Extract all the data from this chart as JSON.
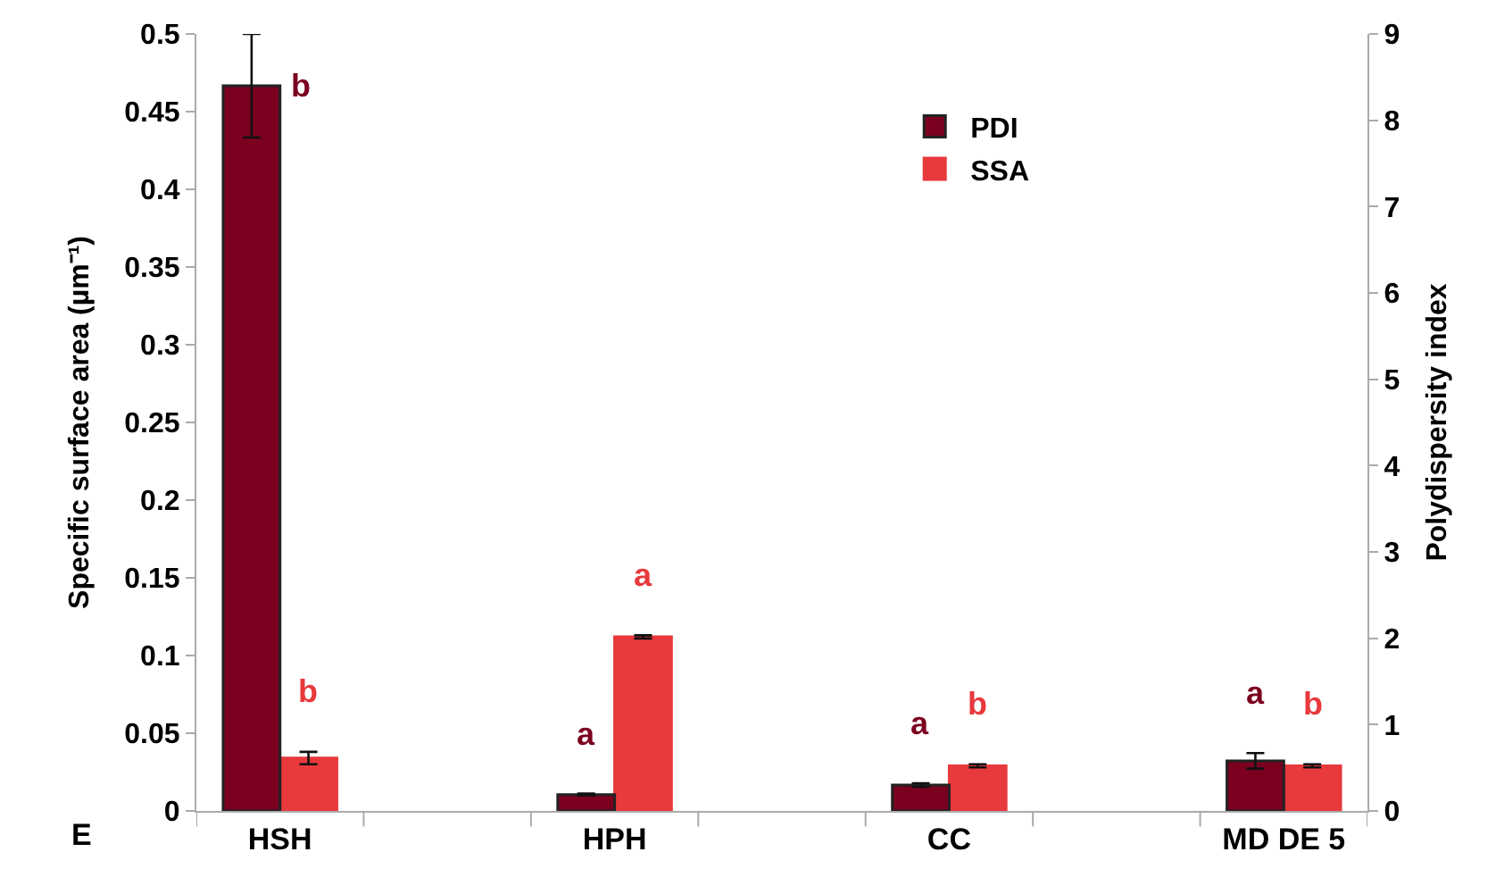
{
  "chart_data": {
    "type": "bar",
    "ylabel": "Specific surface area (µm⁻¹)",
    "y2label": "Polydispersity index",
    "categories": [
      "HSH",
      null,
      "HPH",
      null,
      "CC",
      null,
      "MD DE 5"
    ],
    "series": [
      {
        "name": "PDI",
        "color": "#7b0020",
        "axis": "y2",
        "values": [
          8.4,
          null,
          0.19,
          null,
          0.3,
          null,
          0.58
        ],
        "errors": [
          0.6,
          null,
          0.01,
          null,
          0.02,
          null,
          0.09
        ],
        "value_labels": [
          "b",
          null,
          "a",
          null,
          "a",
          null,
          "a"
        ]
      },
      {
        "name": "SSA",
        "color": "#e8393c",
        "axis": "y",
        "values": [
          0.034,
          null,
          0.112,
          null,
          0.029,
          null,
          0.029
        ],
        "errors": [
          0.004,
          null,
          0.001,
          null,
          0.001,
          null,
          0.001
        ],
        "value_labels": [
          "b",
          null,
          "a",
          null,
          "b",
          null,
          "b"
        ]
      }
    ],
    "ylim": [
      0,
      0.5
    ],
    "yticks": [
      0,
      0.05,
      0.1,
      0.15,
      0.2,
      0.25,
      0.3,
      0.35,
      0.4,
      0.45,
      0.5
    ],
    "y2lim": [
      0,
      9
    ],
    "y2ticks": [
      0,
      1,
      2,
      3,
      4,
      5,
      6,
      7,
      8,
      9
    ],
    "annotations": [
      "E"
    ],
    "legend": "top right"
  }
}
